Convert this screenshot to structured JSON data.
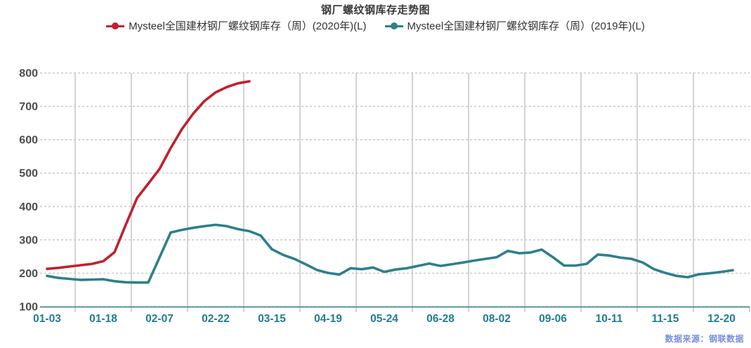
{
  "title": "钢厂螺纹钢库存走势图",
  "legend": {
    "items": [
      {
        "label": "Mysteel全国建材钢厂螺纹钢库存（周）(2020年)(L)",
        "color": "#c1202f"
      },
      {
        "label": "Mysteel全国建材钢厂螺纹钢库存（周）(2019年)(L)",
        "color": "#2e7f8c"
      }
    ]
  },
  "source_note": "数据来源：钢联数据",
  "colors": {
    "series_2020": "#c1202f",
    "series_2019": "#2e7f8c",
    "x_axis_line": "#2e7f8c",
    "x_axis_label": "#1e7e8e",
    "y_axis_label": "#4d4d4d",
    "grid_line": "#cccccc",
    "source_note": "#7b8ed8",
    "title_text": "#3a3a3a"
  },
  "chart_data": {
    "type": "line",
    "title": "钢厂螺纹钢库存走势图",
    "xlabel": "",
    "ylabel": "",
    "ylim": [
      100,
      800
    ],
    "y_ticks": [
      100,
      200,
      300,
      400,
      500,
      600,
      700,
      800
    ],
    "x_tick_labels": [
      "01-03",
      "01-18",
      "02-07",
      "02-22",
      "03-15",
      "04-19",
      "05-24",
      "06-28",
      "08-02",
      "09-06",
      "10-11",
      "11-15",
      "12-20"
    ],
    "points_per_label": 5,
    "n_points": 62,
    "grid": "horizontal-dashed, vertical-solid",
    "legend_position": "top",
    "series": [
      {
        "name": "Mysteel全国建材钢厂螺纹钢库存（周）(2020年)(L)",
        "color": "#c1202f",
        "values": [
          213,
          216,
          220,
          224,
          228,
          236,
          263,
          345,
          425,
          468,
          512,
          575,
          632,
          678,
          716,
          742,
          758,
          769,
          775
        ]
      },
      {
        "name": "Mysteel全国建材钢厂螺纹钢库存（周）(2019年)(L)",
        "color": "#2e7f8c",
        "values": [
          192,
          186,
          183,
          180,
          181,
          182,
          176,
          173,
          172,
          172,
          247,
          322,
          330,
          336,
          341,
          345,
          341,
          332,
          326,
          313,
          272,
          255,
          243,
          227,
          210,
          201,
          196,
          215,
          212,
          217,
          204,
          211,
          215,
          222,
          229,
          222,
          227,
          232,
          238,
          243,
          248,
          267,
          260,
          262,
          271,
          248,
          223,
          223,
          228,
          256,
          253,
          247,
          243,
          232,
          212,
          201,
          192,
          188,
          197,
          200,
          204,
          209
        ]
      }
    ]
  }
}
